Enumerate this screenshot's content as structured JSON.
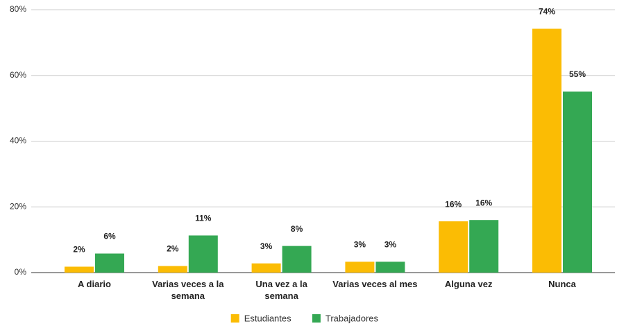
{
  "chart_data": {
    "type": "bar",
    "categories": [
      "A diario",
      "Varias veces a la semana",
      "Una vez a la semana",
      "Varias veces al mes",
      "Alguna vez",
      "Nunca"
    ],
    "series": [
      {
        "name": "Estudiantes",
        "color": "#fbbc04",
        "values": [
          1.8,
          2.0,
          2.8,
          3.3,
          15.6,
          74.2
        ],
        "value_labels": [
          "2%",
          "2%",
          "3%",
          "3%",
          "16%",
          "74%"
        ]
      },
      {
        "name": "Trabajadores",
        "color": "#34a853",
        "values": [
          5.8,
          11.3,
          8.1,
          3.3,
          16.0,
          55.1
        ],
        "value_labels": [
          "6%",
          "11%",
          "8%",
          "3%",
          "16%",
          "55%"
        ]
      }
    ],
    "ylim": [
      0,
      80
    ],
    "yticks": [
      {
        "value": 0,
        "label": "0%"
      },
      {
        "value": 20,
        "label": "20%"
      },
      {
        "value": 40,
        "label": "40%"
      },
      {
        "value": 60,
        "label": "60%"
      },
      {
        "value": 80,
        "label": "80%"
      }
    ],
    "grid": true,
    "legend": "bottom"
  }
}
